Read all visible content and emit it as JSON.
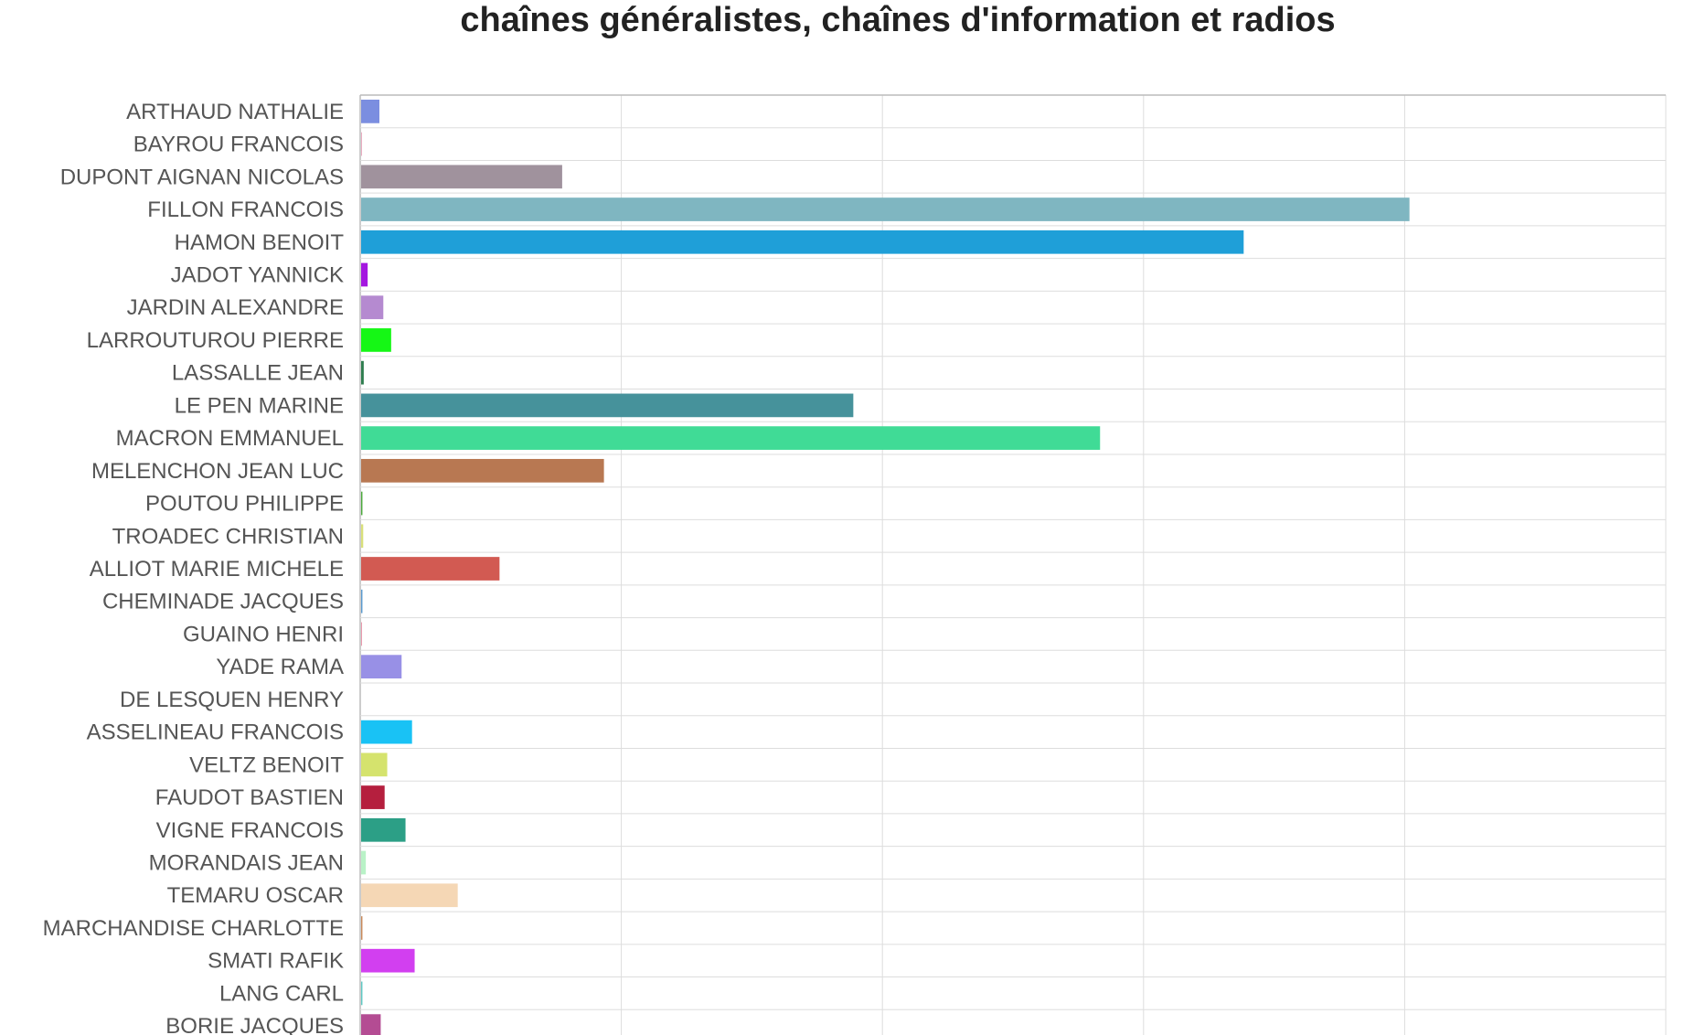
{
  "chart_data": {
    "type": "bar",
    "orientation": "horizontal",
    "title": "chaînes généralistes, chaînes d'information et radios",
    "xlabel": "",
    "ylabel": "",
    "xlim": [
      0,
      5000
    ],
    "grid": true,
    "categories": [
      "ARTHAUD NATHALIE",
      "BAYROU FRANCOIS",
      "DUPONT AIGNAN NICOLAS",
      "FILLON FRANCOIS",
      "HAMON BENOIT",
      "JADOT YANNICK",
      "JARDIN ALEXANDRE",
      "LARROUTUROU PIERRE",
      "LASSALLE JEAN",
      "LE PEN MARINE",
      "MACRON EMMANUEL",
      "MELENCHON JEAN LUC",
      "POUTOU PHILIPPE",
      "TROADEC CHRISTIAN",
      "ALLIOT MARIE MICHELE",
      "CHEMINADE JACQUES",
      "GUAINO HENRI",
      "YADE RAMA",
      "DE LESQUEN HENRY",
      "ASSELINEAU FRANCOIS",
      "VELTZ BENOIT",
      "FAUDOT BASTIEN",
      "VIGNE FRANCOIS",
      "MORANDAIS JEAN",
      "TEMARU OSCAR",
      "MARCHANDISE CHARLOTTE",
      "SMATI RAFIK",
      "LANG CARL",
      "BORIE JACQUES"
    ],
    "values": [
      70,
      3,
      770,
      4015,
      3380,
      25,
      85,
      115,
      10,
      1885,
      2830,
      930,
      5,
      8,
      530,
      5,
      3,
      155,
      0,
      195,
      100,
      90,
      170,
      18,
      370,
      5,
      205,
      5,
      75
    ],
    "colors": [
      "#7b8ee0",
      "#e8a0b8",
      "#a0929d",
      "#7fb6c1",
      "#1f9fd8",
      "#a417e0",
      "#b58ad0",
      "#15f715",
      "#2e7d4f",
      "#46929b",
      "#40db96",
      "#b87852",
      "#4caa3c",
      "#d9e07a",
      "#d25a52",
      "#5a9ad0",
      "#e88aa0",
      "#9890e6",
      "#cccccc",
      "#19c2f5",
      "#d5e36d",
      "#b51f3e",
      "#2c9f86",
      "#b9f2c7",
      "#f5d7b5",
      "#c98a5a",
      "#d23ff0",
      "#5fc9c4",
      "#b44c93"
    ]
  }
}
